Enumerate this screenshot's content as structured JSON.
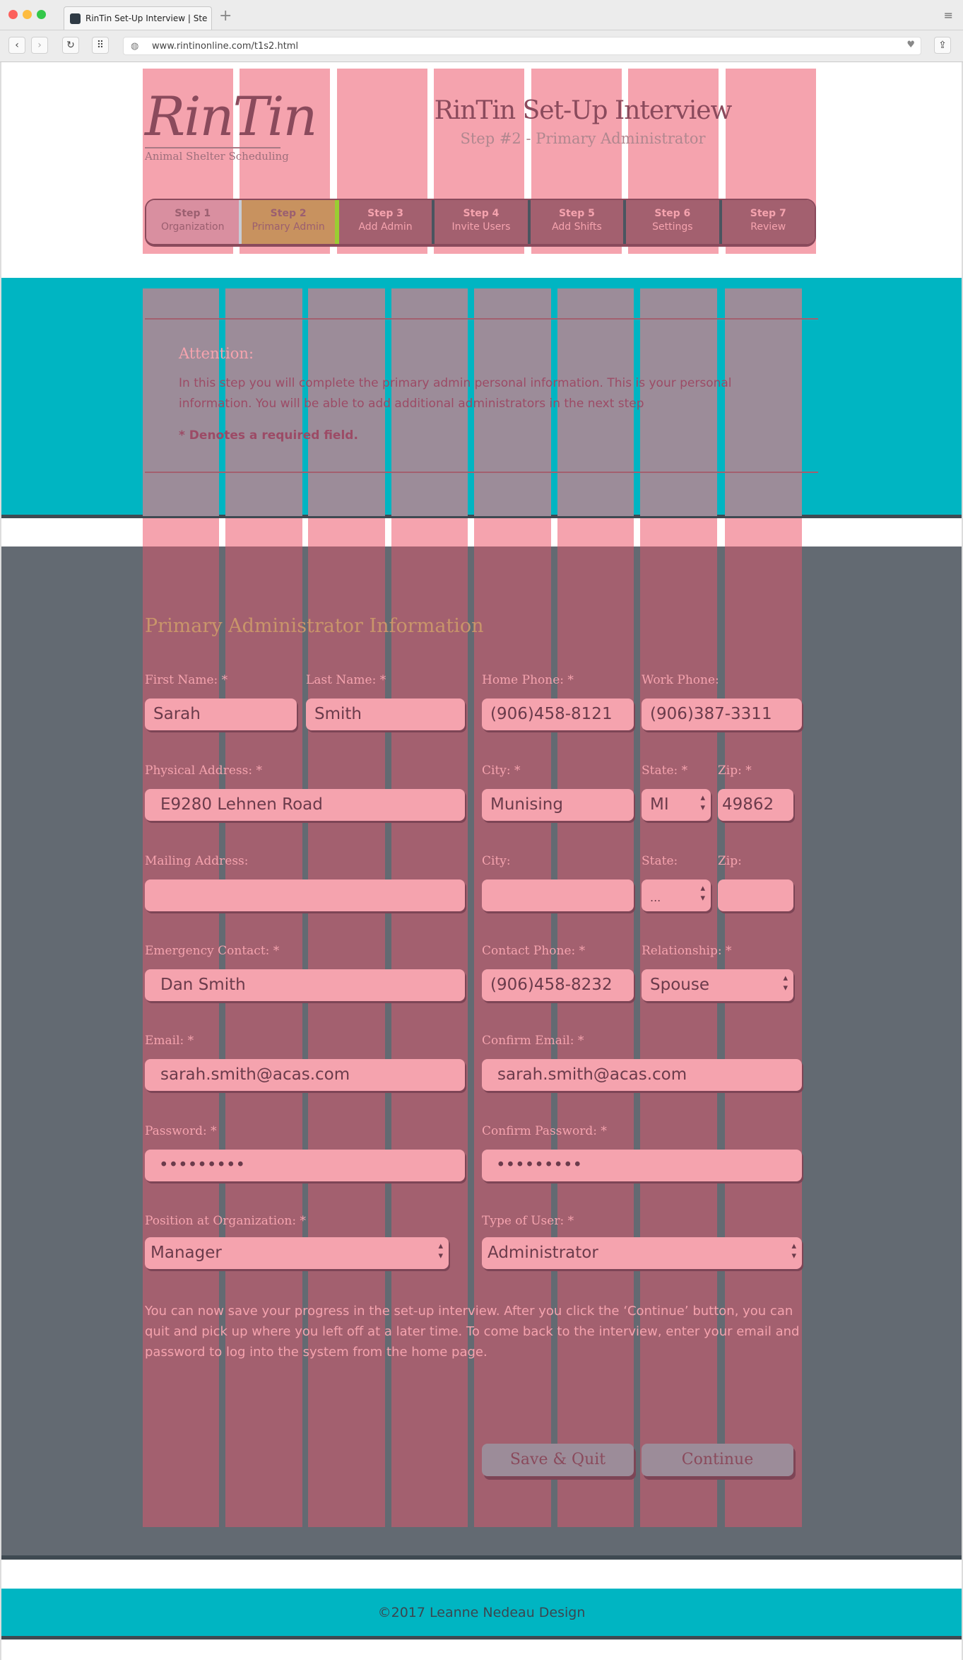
{
  "browser": {
    "tab_title": "RinTin Set-Up Interview | Ste",
    "url": "www.rintinonline.com/t1s2.html"
  },
  "header": {
    "logo_text": "RinTin",
    "logo_tagline": "Animal Shelter Scheduling",
    "title": "RinTin Set-Up Interview",
    "subtitle": "Step #2 - Primary Administrator"
  },
  "steps": [
    {
      "num": "Step 1",
      "label": "Organization",
      "state": "done"
    },
    {
      "num": "Step 2",
      "label": "Primary Admin",
      "state": "active"
    },
    {
      "num": "Step 3",
      "label": "Add Admin",
      "state": "todo"
    },
    {
      "num": "Step 4",
      "label": "Invite Users",
      "state": "todo"
    },
    {
      "num": "Step 5",
      "label": "Add Shifts",
      "state": "todo"
    },
    {
      "num": "Step 6",
      "label": "Settings",
      "state": "todo"
    },
    {
      "num": "Step 7",
      "label": "Review",
      "state": "todo"
    }
  ],
  "attention": {
    "heading": "Attention:",
    "text": "In this step you will complete the primary admin personal information. This is your personal information. You will be able to add additional administrators in the next step",
    "required": "* Denotes a required field."
  },
  "form": {
    "heading": "Primary Administrator Information",
    "first_name": {
      "label": "First Name: *",
      "value": "Sarah"
    },
    "last_name": {
      "label": "Last Name: *",
      "value": "Smith"
    },
    "home_phone": {
      "label": "Home Phone: *",
      "value": "(906)458-8121"
    },
    "work_phone": {
      "label": "Work Phone:",
      "value": "(906)387-3311"
    },
    "physical_address": {
      "label": "Physical Address: *",
      "value": "E9280 Lehnen Road"
    },
    "city": {
      "label": "City: *",
      "value": "Munising"
    },
    "state": {
      "label": "State: *",
      "value": "MI"
    },
    "zip": {
      "label": "Zip: *",
      "value": "49862"
    },
    "mailing_address": {
      "label": "Mailing Address:",
      "value": ""
    },
    "mail_city": {
      "label": "City:",
      "value": ""
    },
    "mail_state": {
      "label": "State:",
      "value": "..."
    },
    "mail_zip": {
      "label": "Zip:",
      "value": ""
    },
    "emergency_contact": {
      "label": "Emergency Contact: *",
      "value": "Dan Smith"
    },
    "contact_phone": {
      "label": "Contact Phone: *",
      "value": "(906)458-8232"
    },
    "relationship": {
      "label": "Relationship: *",
      "value": "Spouse"
    },
    "email": {
      "label": "Email: *",
      "value": "sarah.smith@acas.com"
    },
    "confirm_email": {
      "label": "Confirm Email: *",
      "value": "sarah.smith@acas.com"
    },
    "password": {
      "label": "Password: *",
      "value": "•••••••••"
    },
    "confirm_password": {
      "label": "Confirm Password: *",
      "value": "•••••••••"
    },
    "position": {
      "label": "Position at Organization: *",
      "value": "Manager"
    },
    "user_type": {
      "label": "Type of User: *",
      "value": "Administrator"
    }
  },
  "note": "You can now save your progress in the set-up interview. After you click the ‘Continue’ button, you can quit and pick up where you left off at a later time. To come back to the interview, enter your email and password to log into the system from the home page.",
  "buttons": {
    "save_quit": "Save & Quit",
    "continue": "Continue"
  },
  "footer": "©2017 Leanne Nedeau Design",
  "colors": {
    "teal": "#00b5c2",
    "gray": "#636a72",
    "overlay_pink": "#f5a3ae",
    "active_step": "#c8925f",
    "accent_green": "#9acd32"
  }
}
